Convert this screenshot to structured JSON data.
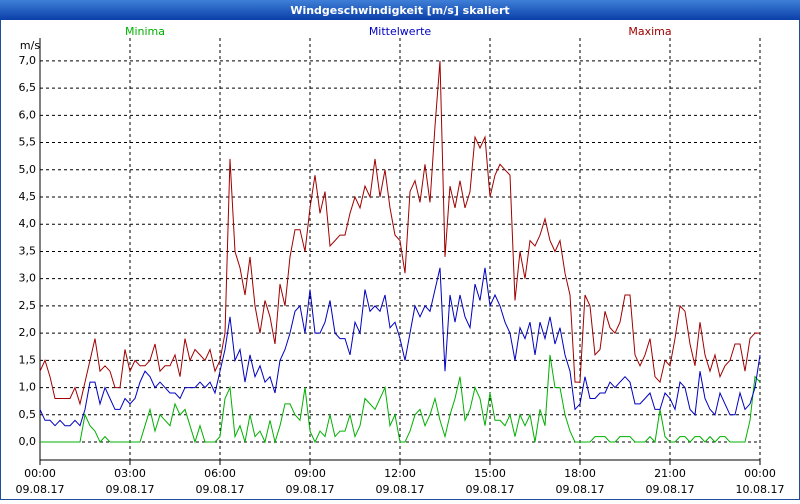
{
  "chart_data": {
    "type": "line",
    "title": "Windgeschwindigkeit [m/s] skaliert",
    "y_unit": "m/s",
    "x": [
      0,
      10,
      20,
      30,
      40,
      50,
      60,
      70,
      80,
      90,
      100,
      110,
      120,
      130,
      140,
      150,
      160,
      170,
      180,
      190,
      200,
      210,
      220,
      230,
      240,
      250,
      260,
      270,
      280,
      290,
      300,
      310,
      320,
      330,
      340,
      350,
      360,
      370,
      380,
      390,
      400,
      410,
      420,
      430,
      440,
      450,
      460,
      470,
      480,
      490,
      500,
      510,
      520,
      530,
      540,
      550,
      560,
      570,
      580,
      590,
      600,
      610,
      620,
      630,
      640,
      650,
      660,
      670,
      680,
      690,
      700,
      710,
      720,
      730,
      740,
      750,
      760,
      770,
      780,
      790,
      800,
      810,
      820,
      830,
      840,
      850,
      860,
      870,
      880,
      890,
      900,
      910,
      920,
      930,
      940,
      950,
      960,
      970,
      980,
      990,
      1000,
      1010,
      1020,
      1030,
      1040,
      1050,
      1060,
      1070,
      1080,
      1090,
      1100,
      1110,
      1120,
      1130,
      1140,
      1150,
      1160,
      1170,
      1180,
      1190,
      1200,
      1210,
      1220,
      1230,
      1240,
      1250,
      1260,
      1270,
      1280,
      1290,
      1300,
      1310,
      1320,
      1330,
      1340,
      1350,
      1360,
      1370,
      1380,
      1390,
      1400,
      1410,
      1420,
      1430,
      1440
    ],
    "series": [
      {
        "name": "Minima",
        "color": "#00b000",
        "values": [
          0,
          0,
          0,
          0,
          0,
          0,
          0,
          0,
          0,
          0.5,
          0.3,
          0.2,
          0,
          0.1,
          0,
          0,
          0,
          0,
          0,
          0,
          0,
          0.3,
          0.6,
          0.2,
          0.5,
          0.4,
          0.3,
          0.7,
          0.5,
          0.6,
          0.3,
          0,
          0.3,
          0,
          0,
          0,
          0.1,
          0.8,
          1.0,
          0.1,
          0.3,
          0,
          0.5,
          0.1,
          0.2,
          0,
          0.4,
          0,
          0.3,
          0.7,
          0.7,
          0.5,
          0.4,
          1.0,
          0.2,
          0,
          0.2,
          0.1,
          0.5,
          0.1,
          0.2,
          0.2,
          0.5,
          0.1,
          0.3,
          0.8,
          0.7,
          0.6,
          0.8,
          1.0,
          0.3,
          0.5,
          0,
          0,
          0.2,
          0.5,
          0.6,
          0.3,
          0.5,
          0.8,
          0.4,
          0.1,
          0.5,
          0.8,
          1.2,
          0.4,
          0.6,
          1.0,
          0.8,
          0.3,
          0.9,
          0.4,
          0.4,
          0.3,
          0.5,
          0.1,
          0.5,
          0.3,
          0.5,
          0,
          0.6,
          0.3,
          1.6,
          1.0,
          1.0,
          0.5,
          0.2,
          0,
          0,
          0,
          0,
          0.1,
          0.1,
          0.1,
          0,
          0,
          0.1,
          0.1,
          0.1,
          0,
          0,
          0,
          0.1,
          0,
          0.6,
          0.1,
          0,
          0,
          0.1,
          0.1,
          0,
          0.1,
          0.1,
          0,
          0.1,
          0,
          0.1,
          0.1,
          0,
          0,
          0,
          0,
          0.4,
          1.2,
          1.1
        ]
      },
      {
        "name": "Mittelwerte",
        "color": "#0000c0",
        "values": [
          0.6,
          0.4,
          0.4,
          0.3,
          0.4,
          0.3,
          0.3,
          0.4,
          0.3,
          0.6,
          1.1,
          1.1,
          0.7,
          1.0,
          0.8,
          0.6,
          0.6,
          0.8,
          0.7,
          0.8,
          1.1,
          1.3,
          1.2,
          1.0,
          1.1,
          1.0,
          0.9,
          0.9,
          0.8,
          1.0,
          1.0,
          1.0,
          1.1,
          1.0,
          1.1,
          0.9,
          1.3,
          1.7,
          2.3,
          1.5,
          1.7,
          1.1,
          1.6,
          1.2,
          1.4,
          1.1,
          1.2,
          0.9,
          1.5,
          1.7,
          2.0,
          2.4,
          2.5,
          2.0,
          2.8,
          2.0,
          2.0,
          2.2,
          2.6,
          2.0,
          1.9,
          1.9,
          1.6,
          2.2,
          2.0,
          2.8,
          2.4,
          2.5,
          2.4,
          2.7,
          2.1,
          2.2,
          1.9,
          1.5,
          2.0,
          2.5,
          2.3,
          2.5,
          2.4,
          2.8,
          3.2,
          1.3,
          2.7,
          2.2,
          2.7,
          2.3,
          2.1,
          2.9,
          2.6,
          3.2,
          2.5,
          2.7,
          2.5,
          2.2,
          2.0,
          1.5,
          2.1,
          1.9,
          2.2,
          1.6,
          2.2,
          1.9,
          2.3,
          1.8,
          2.1,
          1.6,
          1.3,
          0.6,
          0.7,
          1.2,
          0.8,
          0.8,
          0.9,
          0.9,
          1.1,
          1.0,
          1.1,
          1.2,
          1.1,
          0.7,
          0.7,
          0.8,
          0.9,
          0.6,
          0.6,
          0.9,
          0.8,
          0.6,
          1.1,
          1.0,
          0.6,
          0.5,
          1.3,
          0.8,
          0.6,
          0.5,
          0.9,
          0.7,
          0.5,
          0.5,
          0.9,
          0.6,
          0.7,
          1.0,
          1.6
        ]
      },
      {
        "name": "Maxima",
        "color": "#a00000",
        "values": [
          1.3,
          1.5,
          1.2,
          0.8,
          0.8,
          0.8,
          0.8,
          1.0,
          0.7,
          1.1,
          1.5,
          1.9,
          1.3,
          1.4,
          1.3,
          1.0,
          1.0,
          1.7,
          1.3,
          1.5,
          1.4,
          1.4,
          1.5,
          1.8,
          1.3,
          1.4,
          1.4,
          1.6,
          1.2,
          1.9,
          1.5,
          1.7,
          1.6,
          1.5,
          1.7,
          1.3,
          1.5,
          2.0,
          5.2,
          3.5,
          3.2,
          2.7,
          3.4,
          2.5,
          2.0,
          2.6,
          2.3,
          1.8,
          2.9,
          2.5,
          3.4,
          3.9,
          3.9,
          3.5,
          4.3,
          4.9,
          4.2,
          4.6,
          3.6,
          3.7,
          3.8,
          3.8,
          4.2,
          4.5,
          4.3,
          4.7,
          4.5,
          5.2,
          4.5,
          5.0,
          4.3,
          3.8,
          3.7,
          3.1,
          4.6,
          4.8,
          4.4,
          5.1,
          4.4,
          5.8,
          7.0,
          3.4,
          4.7,
          4.3,
          4.8,
          4.3,
          4.6,
          5.6,
          5.4,
          5.6,
          4.5,
          4.9,
          5.1,
          5.0,
          4.9,
          2.6,
          3.5,
          3.0,
          3.7,
          3.6,
          3.8,
          4.1,
          3.7,
          3.5,
          3.7,
          3.1,
          2.7,
          1.1,
          1.1,
          2.7,
          2.5,
          1.6,
          1.7,
          2.4,
          2.1,
          2.0,
          2.2,
          2.7,
          2.7,
          1.6,
          1.4,
          1.6,
          1.9,
          1.2,
          1.1,
          1.5,
          1.4,
          1.9,
          2.5,
          2.4,
          1.8,
          1.4,
          2.2,
          1.6,
          1.3,
          1.6,
          1.2,
          1.4,
          1.5,
          1.8,
          1.8,
          1.3,
          1.9,
          2.0,
          2.0
        ]
      }
    ],
    "xlim": [
      0,
      1440
    ],
    "xticks": [
      {
        "value": 0,
        "label": "00:00",
        "sublabel": "09.08.17"
      },
      {
        "value": 180,
        "label": "03:00",
        "sublabel": "09.08.17"
      },
      {
        "value": 360,
        "label": "06:00",
        "sublabel": "09.08.17"
      },
      {
        "value": 540,
        "label": "09:00",
        "sublabel": "09.08.17"
      },
      {
        "value": 720,
        "label": "12:00",
        "sublabel": "09.08.17"
      },
      {
        "value": 900,
        "label": "15:00",
        "sublabel": "09.08.17"
      },
      {
        "value": 1080,
        "label": "18:00",
        "sublabel": "09.08.17"
      },
      {
        "value": 1260,
        "label": "21:00",
        "sublabel": "09.08.17"
      },
      {
        "value": 1440,
        "label": "00:00",
        "sublabel": "10.08.17"
      }
    ],
    "ylim": [
      -0.33,
      7.42
    ],
    "yticks": [
      {
        "value": 0,
        "label": "0,0"
      },
      {
        "value": 0.5,
        "label": "0,5"
      },
      {
        "value": 1,
        "label": "1,0"
      },
      {
        "value": 1.5,
        "label": "1,5"
      },
      {
        "value": 2,
        "label": "2,0"
      },
      {
        "value": 2.5,
        "label": "2,5"
      },
      {
        "value": 3,
        "label": "3,0"
      },
      {
        "value": 3.5,
        "label": "3,5"
      },
      {
        "value": 4,
        "label": "4,0"
      },
      {
        "value": 4.5,
        "label": "4,5"
      },
      {
        "value": 5,
        "label": "5,0"
      },
      {
        "value": 5.5,
        "label": "5,5"
      },
      {
        "value": 6,
        "label": "6,0"
      },
      {
        "value": 6.5,
        "label": "6,5"
      },
      {
        "value": 7,
        "label": "7,0"
      }
    ],
    "grid": true
  }
}
